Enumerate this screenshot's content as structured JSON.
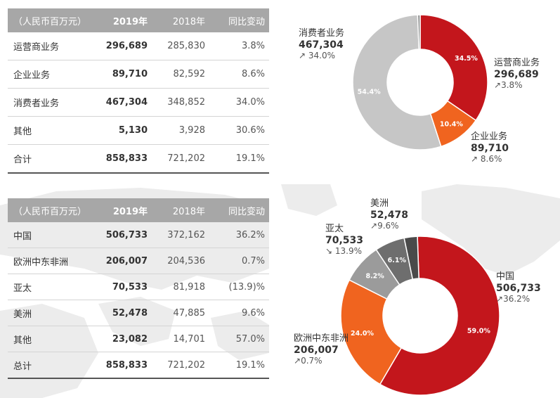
{
  "colors": {
    "header_bg": "#a7a7a7",
    "red": "#c3161c",
    "orange": "#f0641f",
    "light_gray": "#c6c6c6",
    "mid_gray": "#9b9b9b",
    "dark_gray": "#6e6e6e",
    "charcoal": "#4a4a4a",
    "map": "#ececec"
  },
  "business_table": {
    "header": {
      "label": "（人民币百万元）",
      "y2019": "2019年",
      "y2018": "2018年",
      "change": "同比变动"
    },
    "rows": [
      {
        "label": "运营商业务",
        "y2019": "296,689",
        "y2018": "285,830",
        "change": "3.8%"
      },
      {
        "label": "企业业务",
        "y2019": "89,710",
        "y2018": "82,592",
        "change": "8.6%"
      },
      {
        "label": "消费者业务",
        "y2019": "467,304",
        "y2018": "348,852",
        "change": "34.0%"
      },
      {
        "label": "其他",
        "y2019": "5,130",
        "y2018": "3,928",
        "change": "30.6%"
      },
      {
        "label": "合计",
        "y2019": "858,833",
        "y2018": "721,202",
        "change": "19.1%"
      }
    ]
  },
  "region_table": {
    "header": {
      "label": "（人民币百万元）",
      "y2019": "2019年",
      "y2018": "2018年",
      "change": "同比变动"
    },
    "rows": [
      {
        "label": "中国",
        "y2019": "506,733",
        "y2018": "372,162",
        "change": "36.2%"
      },
      {
        "label": "欧洲中东非洲",
        "y2019": "206,007",
        "y2018": "204,536",
        "change": "0.7%"
      },
      {
        "label": "亚太",
        "y2019": "70,533",
        "y2018": "81,918",
        "change": "(13.9)%"
      },
      {
        "label": "美洲",
        "y2019": "52,478",
        "y2018": "47,885",
        "change": "9.6%"
      },
      {
        "label": "其他",
        "y2019": "23,082",
        "y2018": "14,701",
        "change": "57.0%"
      },
      {
        "label": "总计",
        "y2019": "858,833",
        "y2018": "721,202",
        "change": "19.1%"
      }
    ]
  },
  "chart_data": [
    {
      "type": "pie",
      "donut": true,
      "segments": [
        {
          "name": "运营商业务",
          "value": 296689,
          "percent_label": "34.5%",
          "growth": "3.8%",
          "direction": "up",
          "color": "#c3161c"
        },
        {
          "name": "企业业务",
          "value": 89710,
          "percent_label": "10.4%",
          "growth": "8.6%",
          "direction": "up",
          "color": "#f0641f"
        },
        {
          "name": "消费者业务",
          "value": 467304,
          "percent_label": "54.4%",
          "growth": "34.0%",
          "direction": "up",
          "color": "#c6c6c6"
        },
        {
          "name": "其他",
          "value": 5130,
          "percent_label": "",
          "growth": "",
          "direction": "",
          "color": "#8a8a8a"
        }
      ]
    },
    {
      "type": "pie",
      "donut": true,
      "segments": [
        {
          "name": "中国",
          "value": 506733,
          "percent_label": "59.0%",
          "growth": "36.2%",
          "direction": "up",
          "color": "#c3161c"
        },
        {
          "name": "欧洲中东非洲",
          "value": 206007,
          "percent_label": "24.0%",
          "growth": "0.7%",
          "direction": "up",
          "color": "#f0641f"
        },
        {
          "name": "亚太",
          "value": 70533,
          "percent_label": "8.2%",
          "growth": "13.9%",
          "direction": "down",
          "color": "#9b9b9b"
        },
        {
          "name": "美洲",
          "value": 52478,
          "percent_label": "6.1%",
          "growth": "9.6%",
          "direction": "up",
          "color": "#6e6e6e"
        },
        {
          "name": "其他",
          "value": 23082,
          "percent_label": "",
          "growth": "",
          "direction": "",
          "color": "#4a4a4a"
        }
      ]
    }
  ]
}
